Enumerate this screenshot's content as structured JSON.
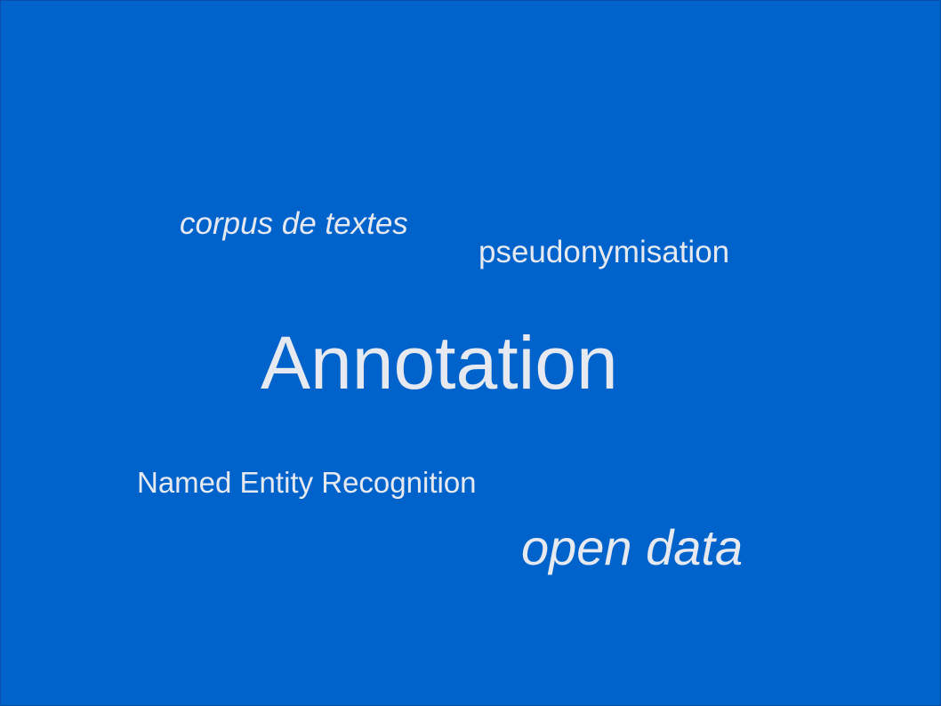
{
  "slide": {
    "background_color": "#0063cc",
    "text_color": "#e6e9ef",
    "words": {
      "corpus": "corpus de textes",
      "pseudonymisation": "pseudonymisation",
      "annotation": "Annotation",
      "ner": "Named Entity Recognition",
      "open_data": "open data"
    }
  }
}
